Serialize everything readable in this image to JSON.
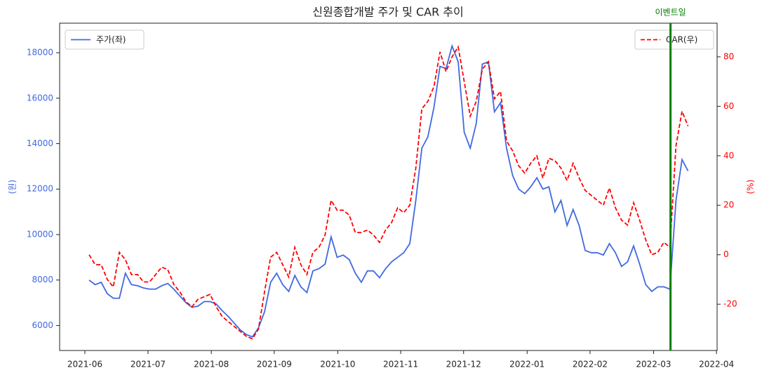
{
  "chart_data": {
    "type": "line",
    "title": "신원종합개발 주가 및 CAR 추이",
    "ylabel": "(원)",
    "y2label": "(%)",
    "categories": [
      null,
      null,
      null,
      null,
      null,
      null,
      null,
      null,
      null,
      null,
      null,
      null,
      null,
      null,
      null,
      null,
      null,
      null,
      null,
      null,
      null,
      null,
      null,
      null,
      null,
      null,
      null,
      null,
      null,
      null,
      null,
      null,
      null,
      null,
      null,
      null,
      null,
      null,
      null,
      null,
      null,
      null,
      null,
      null,
      null,
      null,
      null,
      null,
      null,
      null,
      null,
      null,
      null,
      null,
      null,
      null,
      null,
      null,
      null,
      null,
      null,
      null,
      null,
      null,
      null,
      null,
      null,
      null,
      null,
      null,
      null,
      null,
      null,
      null,
      null,
      null,
      null,
      null,
      null,
      null,
      null,
      null,
      null,
      null,
      null,
      null,
      null,
      null,
      null,
      null,
      null,
      null,
      null,
      null,
      null,
      null,
      null,
      null,
      null,
      null
    ],
    "xlim": [
      -4.87,
      103.8
    ],
    "xticks": [
      {
        "value": -0.7,
        "label": "2021-06"
      },
      {
        "value": 9.74,
        "label": "2021-07"
      },
      {
        "value": 20.2,
        "label": "2021-08"
      },
      {
        "value": 30.6,
        "label": "2021-09"
      },
      {
        "value": 41.1,
        "label": "2021-10"
      },
      {
        "value": 51.5,
        "label": "2021-11"
      },
      {
        "value": 61.9,
        "label": "2021-12"
      },
      {
        "value": 72.4,
        "label": "2022-01"
      },
      {
        "value": 82.8,
        "label": "2022-02"
      },
      {
        "value": 93.3,
        "label": "2022-03"
      },
      {
        "value": 103.7,
        "label": "2022-04"
      }
    ],
    "ylim": [
      4900,
      19300
    ],
    "yticks": [
      6000,
      8000,
      10000,
      12000,
      14000,
      16000,
      18000
    ],
    "ycolor": "#4169e1",
    "y2lim": [
      -38.7,
      93.6
    ],
    "y2ticks": [
      -20,
      0,
      20,
      40,
      60,
      80
    ],
    "y2color": "#ff0000",
    "series": [
      {
        "name": "주가(좌)",
        "color": "#4169e1",
        "dash": false,
        "legend": "upper left",
        "values": [
          8000,
          7800,
          7900,
          7400,
          7200,
          7200,
          8300,
          7800,
          7750,
          7650,
          7600,
          7600,
          7750,
          7850,
          7600,
          7300,
          7000,
          6800,
          6850,
          7050,
          7050,
          6950,
          6650,
          6400,
          6100,
          5800,
          5600,
          5500,
          5900,
          6600,
          7900,
          8300,
          7800,
          7500,
          8200,
          7700,
          7450,
          8400,
          8500,
          8700,
          9900,
          9000,
          9100,
          8900,
          8300,
          7900,
          8400,
          8400,
          8100,
          8500,
          8800,
          9000,
          9200,
          9600,
          11500,
          13800,
          14300,
          15600,
          17400,
          17300,
          18300,
          17600,
          14500,
          13800,
          14900,
          17500,
          17600,
          15400,
          15800,
          13800,
          12600,
          12000,
          11800,
          12100,
          12500,
          12000,
          12100,
          11000,
          11500,
          10400,
          11100,
          10400,
          9300,
          9200,
          9200,
          9100,
          9600,
          9200,
          8600,
          8800,
          9500,
          8700,
          7800,
          7500,
          7700,
          7700,
          7600,
          11500,
          13300,
          12800
        ]
      },
      {
        "name": "CAR(우)",
        "color": "#ff0000",
        "dash": true,
        "axis": "y2",
        "legend": "upper right",
        "values": [
          0,
          -4,
          -4,
          -10,
          -13,
          1,
          -2,
          -8,
          -8,
          -11,
          -11,
          -8,
          -5,
          -6,
          -12,
          -15,
          -19,
          -21,
          -18,
          -17,
          -16,
          -21,
          -25,
          -27,
          -29,
          -31,
          -33,
          -34,
          -30,
          -15,
          -1,
          1,
          -4,
          -9,
          3,
          -4,
          -8,
          1,
          3,
          8,
          22,
          18,
          18,
          16,
          9,
          9,
          10,
          8,
          5,
          10,
          13,
          19,
          17,
          20,
          35,
          59,
          62,
          68,
          82,
          74,
          80,
          84,
          70,
          56,
          62,
          75,
          78,
          63,
          66,
          46,
          42,
          36,
          33,
          37,
          40,
          31,
          39,
          38,
          35,
          30,
          37,
          31,
          26,
          24,
          22,
          20,
          27,
          19,
          14,
          12,
          21,
          14,
          6,
          0,
          1,
          5,
          3,
          44,
          58,
          52
        ]
      }
    ],
    "event": {
      "x": 96.1,
      "label": "이벤트일",
      "color": "#008000"
    }
  }
}
